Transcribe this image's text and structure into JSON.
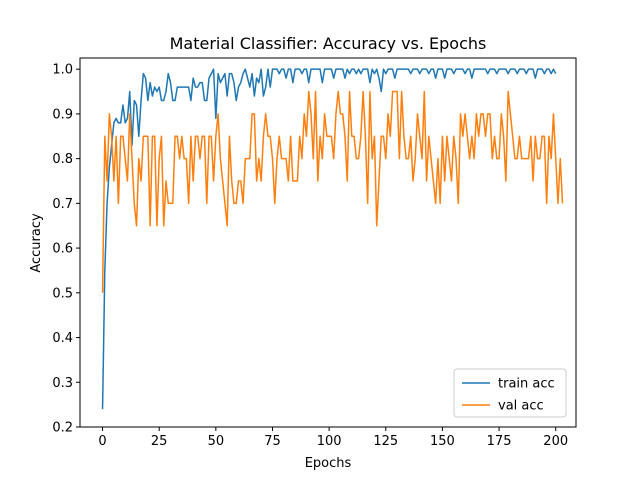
{
  "chart_data": {
    "type": "line",
    "title": "Material Classifier: Accuracy vs. Epochs",
    "xlabel": "Epochs",
    "ylabel": "Accuracy",
    "xlim": [
      -9.95,
      208.95
    ],
    "ylim": [
      0.2,
      1.025
    ],
    "xticks": [
      0,
      25,
      50,
      75,
      100,
      125,
      150,
      175,
      200
    ],
    "yticks": [
      0.2,
      0.3,
      0.4,
      0.5,
      0.6,
      0.7,
      0.8,
      0.9,
      1.0
    ],
    "ytick_labels": [
      "0.2",
      "0.3",
      "0.4",
      "0.5",
      "0.6",
      "0.7",
      "0.8",
      "0.9",
      "1.0"
    ],
    "grid": false,
    "legend_position": "lower-right",
    "colors": {
      "train": "#1f77b4",
      "val": "#ff7f0e"
    },
    "series": [
      {
        "name": "train acc",
        "color": "#1f77b4",
        "values": [
          0.24,
          0.55,
          0.7,
          0.78,
          0.83,
          0.88,
          0.89,
          0.88,
          0.88,
          0.92,
          0.88,
          0.89,
          0.95,
          0.83,
          0.93,
          0.92,
          0.85,
          0.93,
          0.99,
          0.98,
          0.93,
          0.97,
          0.94,
          0.96,
          0.95,
          0.96,
          0.93,
          0.93,
          0.95,
          0.99,
          0.97,
          0.93,
          0.93,
          0.96,
          0.96,
          0.96,
          0.96,
          0.96,
          0.96,
          0.93,
          0.98,
          0.96,
          0.96,
          0.97,
          0.97,
          0.93,
          0.93,
          0.98,
          0.99,
          1.0,
          0.89,
          0.99,
          0.97,
          0.98,
          0.99,
          0.94,
          0.99,
          0.99,
          0.97,
          0.93,
          0.96,
          0.97,
          0.99,
          1.0,
          0.98,
          0.96,
          0.99,
          0.94,
          0.98,
          0.97,
          1.0,
          0.94,
          0.96,
          1.0,
          0.96,
          1.0,
          1.0,
          1.0,
          0.99,
          1.0,
          1.0,
          0.98,
          1.0,
          1.0,
          0.97,
          1.0,
          1.0,
          1.0,
          0.99,
          1.0,
          1.0,
          0.97,
          1.0,
          1.0,
          1.0,
          1.0,
          1.0,
          0.97,
          1.0,
          1.0,
          1.0,
          1.0,
          0.98,
          1.0,
          1.0,
          1.0,
          1.0,
          0.98,
          1.0,
          0.99,
          1.0,
          1.0,
          0.99,
          1.0,
          0.99,
          1.0,
          1.0,
          1.0,
          0.97,
          1.0,
          0.99,
          1.0,
          0.98,
          0.95,
          1.0,
          0.99,
          1.0,
          1.0,
          1.0,
          0.98,
          1.0,
          1.0,
          1.0,
          1.0,
          1.0,
          1.0,
          0.99,
          1.0,
          1.0,
          1.0,
          0.99,
          1.0,
          1.0,
          1.0,
          0.99,
          1.0,
          1.0,
          0.98,
          1.0,
          1.0,
          1.0,
          0.98,
          1.0,
          1.0,
          1.0,
          0.99,
          1.0,
          1.0,
          1.0,
          1.0,
          0.99,
          1.0,
          1.0,
          0.98,
          1.0,
          1.0,
          1.0,
          1.0,
          1.0,
          1.0,
          0.99,
          1.0,
          1.0,
          1.0,
          0.99,
          1.0,
          1.0,
          1.0,
          1.0,
          0.99,
          1.0,
          1.0,
          1.0,
          0.99,
          1.0,
          1.0,
          1.0,
          0.99,
          1.0,
          1.0,
          1.0,
          0.98,
          1.0,
          1.0,
          1.0,
          0.99,
          1.0,
          1.0,
          0.99,
          1.0,
          0.99
        ]
      },
      {
        "name": "val acc",
        "color": "#ff7f0e",
        "values": [
          0.5,
          0.85,
          0.75,
          0.9,
          0.85,
          0.75,
          0.85,
          0.7,
          0.85,
          0.85,
          0.8,
          0.75,
          0.9,
          0.8,
          0.7,
          0.65,
          0.8,
          0.75,
          0.85,
          0.85,
          0.85,
          0.65,
          0.85,
          0.85,
          0.65,
          0.8,
          0.85,
          0.65,
          0.75,
          0.7,
          0.7,
          0.7,
          0.85,
          0.85,
          0.8,
          0.85,
          0.8,
          0.8,
          0.7,
          0.85,
          0.75,
          0.85,
          0.85,
          0.8,
          0.85,
          0.85,
          0.7,
          0.85,
          0.85,
          0.75,
          0.85,
          0.9,
          0.8,
          0.75,
          0.7,
          0.65,
          0.85,
          0.75,
          0.7,
          0.7,
          0.75,
          0.75,
          0.7,
          0.8,
          0.8,
          0.8,
          0.9,
          0.9,
          0.75,
          0.8,
          0.75,
          0.85,
          0.9,
          0.85,
          0.85,
          0.8,
          0.7,
          0.8,
          0.85,
          0.8,
          0.8,
          0.8,
          0.75,
          0.85,
          0.75,
          0.75,
          0.75,
          0.85,
          0.8,
          0.9,
          0.85,
          0.95,
          0.9,
          0.8,
          0.95,
          0.75,
          0.85,
          0.8,
          0.9,
          0.85,
          0.85,
          0.85,
          0.8,
          0.9,
          0.95,
          0.9,
          0.9,
          0.85,
          0.75,
          0.95,
          0.85,
          0.85,
          0.8,
          0.8,
          0.85,
          0.95,
          0.85,
          0.7,
          0.95,
          0.8,
          0.85,
          0.65,
          0.75,
          0.85,
          0.85,
          0.8,
          0.9,
          0.85,
          0.95,
          0.95,
          0.95,
          0.8,
          0.95,
          0.85,
          0.8,
          0.8,
          0.85,
          0.75,
          0.8,
          0.9,
          0.85,
          0.8,
          0.95,
          0.75,
          0.85,
          0.8,
          0.75,
          0.7,
          0.8,
          0.7,
          0.85,
          0.75,
          0.85,
          0.8,
          0.75,
          0.85,
          0.8,
          0.7,
          0.9,
          0.85,
          0.9,
          0.85,
          0.8,
          0.85,
          0.8,
          0.9,
          0.85,
          0.9,
          0.9,
          0.85,
          0.9,
          0.9,
          0.8,
          0.85,
          0.8,
          0.8,
          0.9,
          0.85,
          0.75,
          0.95,
          0.9,
          0.85,
          0.8,
          0.8,
          0.85,
          0.8,
          0.8,
          0.8,
          0.8,
          0.85,
          0.75,
          0.85,
          0.8,
          0.8,
          0.85,
          0.85,
          0.7,
          0.85,
          0.8,
          0.9,
          0.8,
          0.7,
          0.8,
          0.7
        ]
      }
    ]
  }
}
